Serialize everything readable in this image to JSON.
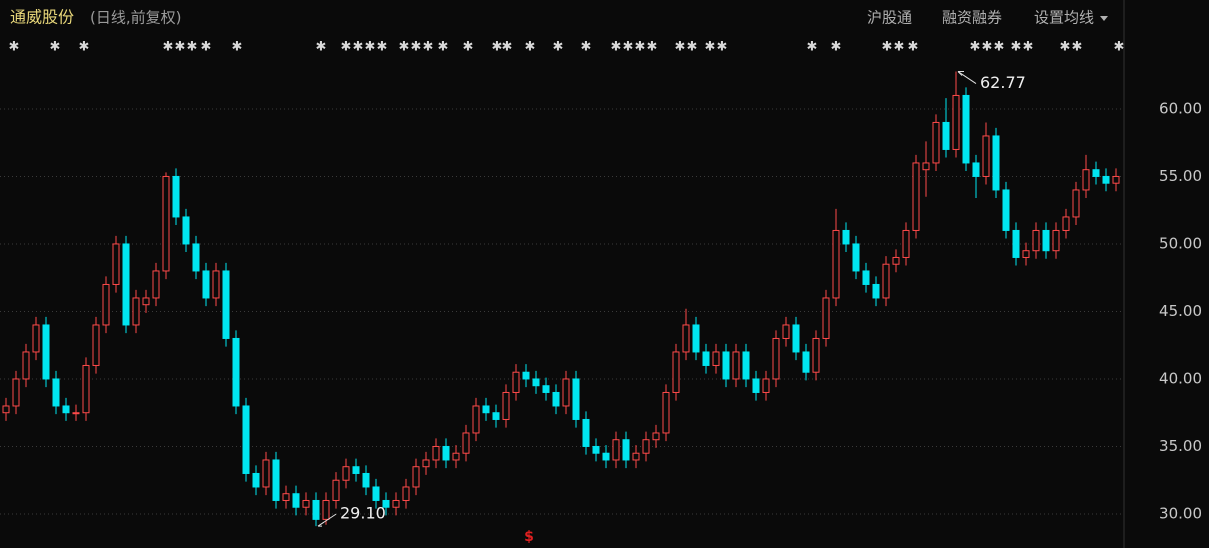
{
  "toolbar": [
    "沪股通",
    "融资融券",
    "设置均线"
  ],
  "chart_data": {
    "type": "candlestick",
    "title": "通威股份",
    "subtitle": "(日线,前复权)",
    "up_color": "#ff4a4a",
    "down_color": "#00e5f0",
    "grid": true,
    "ylim": [
      27.48,
      68.07
    ],
    "yticks": [
      {
        "value": 30,
        "label": "30.00"
      },
      {
        "value": 35,
        "label": "35.00"
      },
      {
        "value": 40,
        "label": "40.00"
      },
      {
        "value": 45,
        "label": "45.00"
      },
      {
        "value": 50,
        "label": "50.00"
      },
      {
        "value": 55,
        "label": "55.00"
      },
      {
        "value": 60,
        "label": "60.00"
      }
    ],
    "annotations": [
      {
        "value": 62.77,
        "label": "62.77"
      },
      {
        "value": 29.1,
        "label": "29.10"
      }
    ],
    "open": [
      37.5,
      38,
      40,
      42,
      44,
      40,
      38,
      37.5,
      37.5,
      41,
      44,
      47,
      50,
      44,
      45.5,
      46,
      48,
      55,
      52,
      50,
      48,
      46,
      48,
      43,
      38,
      33,
      32,
      34,
      31,
      31.5,
      30.5,
      31,
      29.6,
      31,
      32.5,
      33.5,
      33,
      32,
      31,
      30.5,
      31,
      32,
      33.5,
      34,
      35,
      34,
      34.5,
      36,
      38,
      37.5,
      37,
      39,
      40.5,
      40,
      39.5,
      39,
      38,
      40,
      37,
      35,
      34.5,
      34,
      35.5,
      34,
      34.5,
      35.5,
      36,
      39,
      42,
      44,
      42,
      41,
      42,
      40,
      42,
      40,
      39,
      40,
      43,
      44,
      42,
      40.5,
      43,
      46,
      51,
      50,
      48,
      47,
      46,
      48.5,
      49,
      51,
      55.5,
      56,
      59,
      57,
      61,
      56,
      55,
      58,
      54,
      51,
      49,
      49.5,
      51,
      49.5,
      51,
      52,
      54,
      55.5,
      55,
      54.5
    ],
    "high": [
      38.6,
      40.6,
      42.6,
      44.6,
      44.6,
      40.6,
      38.6,
      38.1,
      41.6,
      44.6,
      47.6,
      50.6,
      50.6,
      46.6,
      46.6,
      48.6,
      55.3,
      55.6,
      52.6,
      50.6,
      48.6,
      48.6,
      48.6,
      43.6,
      38.6,
      33.6,
      34.6,
      34.6,
      32.1,
      32.1,
      31.6,
      31.6,
      31.6,
      33.1,
      34.1,
      34.1,
      33.6,
      32.6,
      31.6,
      31.6,
      32.6,
      34.1,
      34.6,
      35.6,
      35.6,
      35.1,
      36.6,
      38.6,
      38.6,
      38.1,
      39.6,
      41.1,
      41.1,
      40.6,
      40.1,
      39.6,
      40.6,
      40.6,
      37.6,
      35.6,
      35.1,
      36.1,
      36.1,
      35.1,
      36.1,
      36.6,
      39.6,
      42.6,
      45.2,
      44.6,
      42.6,
      42.6,
      42.6,
      42.6,
      42.6,
      40.6,
      40.6,
      43.6,
      44.6,
      44.6,
      42.6,
      43.6,
      46.6,
      52.6,
      51.6,
      50.6,
      48.6,
      47.6,
      49.1,
      49.6,
      51.6,
      56.6,
      57.6,
      59.6,
      60.8,
      62.77,
      61.6,
      56.6,
      59,
      58.6,
      54.6,
      51.6,
      50.1,
      51.6,
      51.6,
      51.6,
      52.6,
      54.6,
      56.6,
      56.1,
      55.6,
      55.6
    ],
    "low": [
      36.9,
      37.4,
      39.4,
      41.4,
      39.4,
      37.4,
      36.9,
      36.9,
      36.9,
      40.4,
      43.4,
      46.4,
      43.4,
      43.4,
      44.9,
      45.4,
      47.4,
      51.4,
      49.4,
      47.4,
      45.4,
      45.4,
      42.4,
      37.4,
      32.4,
      31.4,
      31.4,
      30.4,
      30.4,
      29.9,
      29.9,
      29.1,
      29.2,
      30.4,
      31.9,
      32.4,
      31.4,
      30.4,
      29.9,
      29.9,
      30.4,
      31.4,
      32.9,
      33.4,
      33.4,
      33.4,
      33.9,
      35.4,
      36.9,
      36.4,
      36.4,
      38.4,
      39.4,
      38.9,
      38.4,
      37.4,
      37.4,
      36.4,
      34.4,
      33.9,
      33.4,
      33.4,
      33.4,
      33.4,
      33.9,
      34.9,
      35.4,
      38.4,
      41.4,
      41.4,
      40.4,
      40.4,
      39.4,
      39.4,
      39.4,
      38.4,
      38.4,
      39.4,
      42.4,
      41.4,
      39.9,
      39.9,
      42.4,
      45.4,
      49.4,
      47.4,
      46.4,
      45.4,
      45.4,
      47.9,
      48.4,
      50.4,
      53.5,
      55.4,
      56.4,
      56.4,
      55.4,
      53.4,
      54.4,
      53.4,
      50.4,
      48.4,
      48.4,
      48.9,
      48.9,
      48.9,
      50.4,
      51.4,
      53.4,
      54.4,
      53.9,
      53.9
    ],
    "close": [
      38,
      40,
      42,
      44,
      40,
      38,
      37.5,
      37.5,
      41,
      44,
      47,
      50,
      44,
      46,
      46,
      48,
      55,
      52,
      50,
      48,
      46,
      48,
      43,
      38,
      33,
      32,
      34,
      31,
      31.5,
      30.5,
      31,
      29.6,
      31,
      32.5,
      33.5,
      33,
      32,
      31,
      30.5,
      31,
      32,
      33.5,
      34,
      35,
      34,
      34.5,
      36,
      38,
      37.5,
      37,
      39,
      40.5,
      40,
      39.5,
      39,
      38,
      40,
      37,
      35,
      34.5,
      34,
      35.5,
      34,
      34.5,
      35.5,
      36,
      39,
      42,
      44,
      42,
      41,
      42,
      40,
      42,
      40,
      39,
      40,
      43,
      44,
      42,
      40.5,
      43,
      46,
      51,
      50,
      48,
      47,
      46,
      48.5,
      49,
      51,
      56,
      56,
      59,
      57,
      61,
      56,
      55,
      58,
      54,
      51,
      49,
      49.5,
      51,
      49.5,
      51,
      52,
      54,
      55.5,
      55,
      54.5,
      55
    ]
  }
}
